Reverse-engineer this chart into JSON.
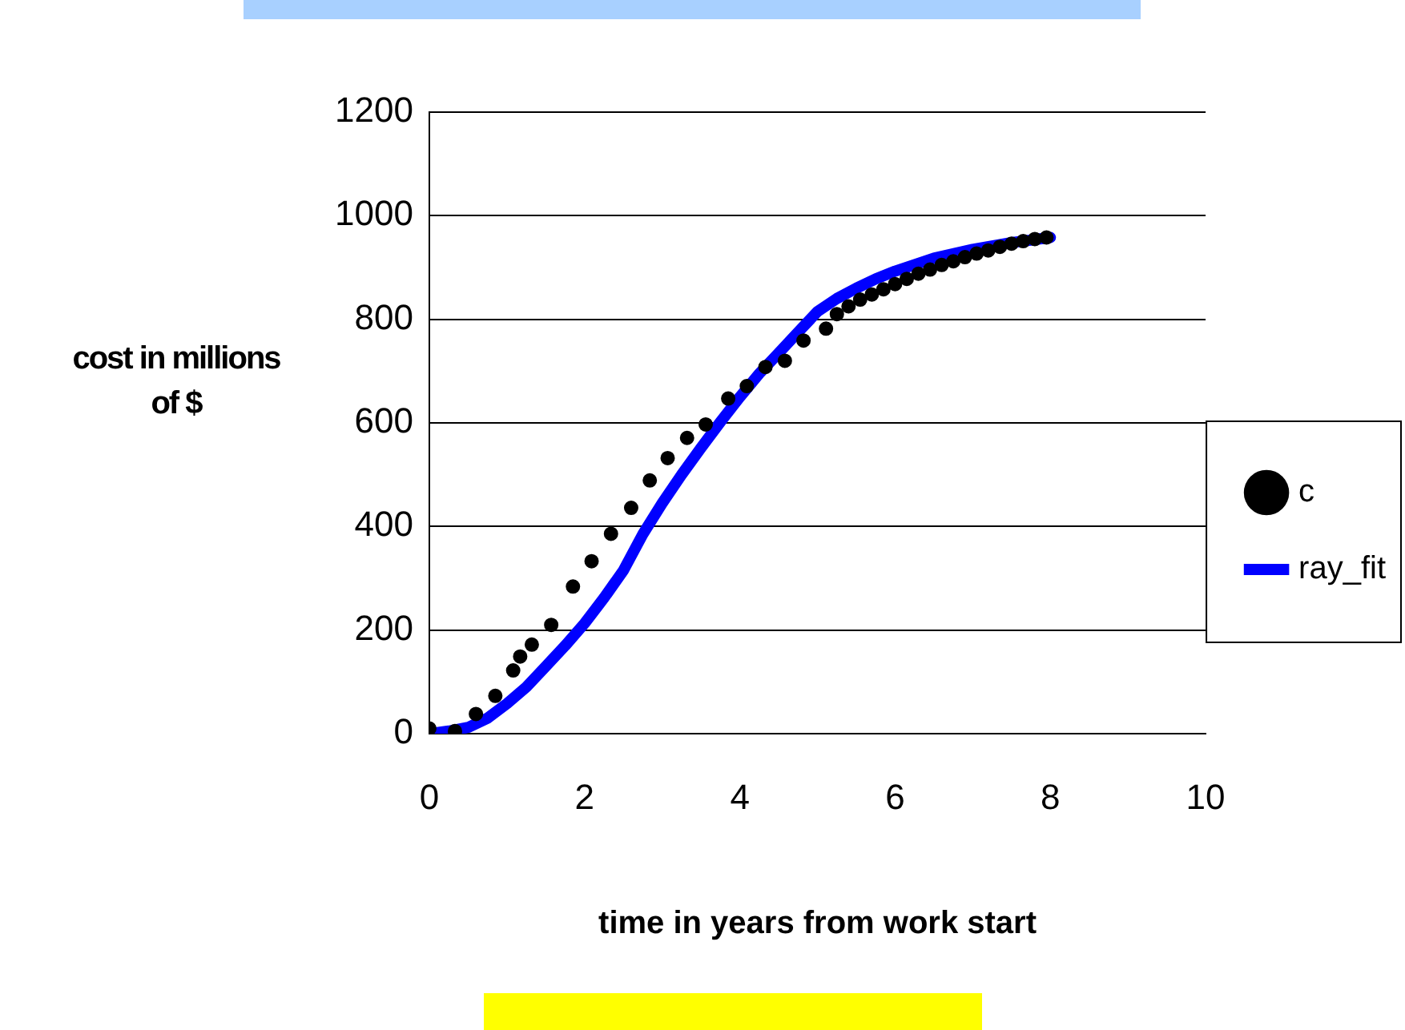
{
  "chart_data": {
    "type": "scatter",
    "xlabel": "time in years from work start",
    "ylabel": "cost in millions\nof $",
    "xlim": [
      0,
      10
    ],
    "xticks": [
      0,
      2,
      4,
      6,
      8,
      10
    ],
    "ylim": [
      0,
      1200
    ],
    "yticks": [
      0,
      200,
      400,
      600,
      800,
      1000,
      1200
    ],
    "grid": "y",
    "legend": "right",
    "series": [
      {
        "name": "c",
        "marker": "circle",
        "color": "#000000",
        "x": [
          0,
          0.33,
          0.6,
          0.85,
          1.08,
          1.17,
          1.32,
          1.57,
          1.85,
          2.09,
          2.34,
          2.6,
          2.84,
          3.07,
          3.32,
          3.56,
          3.85,
          4.09,
          4.33,
          4.58,
          4.82,
          5.11,
          5.25,
          5.4,
          5.55,
          5.7,
          5.85,
          6.0,
          6.15,
          6.3,
          6.45,
          6.6,
          6.75,
          6.9,
          7.05,
          7.2,
          7.35,
          7.5,
          7.65,
          7.8,
          7.95
        ],
        "values": [
          10,
          5,
          38,
          73,
          122,
          149,
          172,
          210,
          284,
          333,
          386,
          436,
          489,
          532,
          571,
          597,
          647,
          671,
          708,
          720,
          759,
          782,
          810,
          825,
          838,
          848,
          858,
          868,
          878,
          888,
          896,
          905,
          912,
          920,
          927,
          933,
          940,
          946,
          951,
          955,
          958
        ]
      },
      {
        "name": "ray_fit",
        "type": "line",
        "marker": "none",
        "line_style": "solid",
        "color": "#0000ff",
        "x": [
          0,
          0.25,
          0.5,
          0.75,
          1,
          1.25,
          1.5,
          1.75,
          2,
          2.25,
          2.5,
          2.75,
          3,
          3.25,
          3.5,
          3.75,
          4,
          4.25,
          4.5,
          4.75,
          5,
          5.25,
          5.5,
          5.75,
          6,
          6.5,
          7,
          7.5,
          8
        ],
        "values": [
          0,
          5,
          12,
          30,
          58,
          90,
          130,
          170,
          213,
          262,
          315,
          385,
          445,
          500,
          552,
          602,
          650,
          695,
          735,
          775,
          815,
          840,
          860,
          878,
          893,
          918,
          935,
          948,
          958
        ]
      }
    ]
  }
}
